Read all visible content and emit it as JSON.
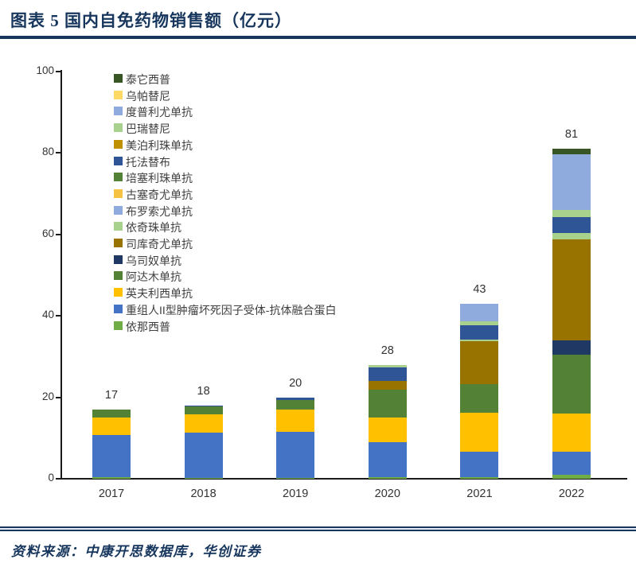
{
  "header": {
    "title": "图表 5  国内自免药物销售额（亿元）",
    "title_color": "#17365d"
  },
  "footer": {
    "source_text": "资料来源：中康开思数据库，华创证券",
    "text_color": "#17365d"
  },
  "chart_data": {
    "type": "bar",
    "stacked": true,
    "title": "国内自免药物销售额（亿元）",
    "xlabel": "",
    "ylabel": "",
    "categories": [
      "2017",
      "2018",
      "2019",
      "2020",
      "2021",
      "2022"
    ],
    "totals": [
      17,
      18,
      20,
      28,
      43,
      81
    ],
    "ylim": [
      0,
      100
    ],
    "yticks": [
      0,
      20,
      40,
      60,
      80,
      100
    ],
    "grid": false,
    "legend_position": "inside-top-left",
    "legend_note": "legend listed top-to-bottom; stacking order in bars is the reverse (last legend item at bottom of stack)",
    "series": [
      {
        "name": "泰它西普",
        "color": "#375623",
        "values": [
          0,
          0,
          0,
          0,
          0,
          1.4
        ]
      },
      {
        "name": "乌帕替尼",
        "color": "#ffd966",
        "values": [
          0,
          0,
          0,
          0,
          0,
          0
        ]
      },
      {
        "name": "度普利尤单抗",
        "color": "#8faadc",
        "values": [
          0,
          0,
          0,
          0,
          4.3,
          13.5
        ]
      },
      {
        "name": "巴瑞替尼",
        "color": "#a9d18e",
        "values": [
          0,
          0,
          0,
          0.7,
          1.0,
          1.8
        ]
      },
      {
        "name": "美泊利珠单抗",
        "color": "#bf9000",
        "values": [
          0,
          0,
          0,
          0,
          0,
          0
        ]
      },
      {
        "name": "托法替布",
        "color": "#2f5597",
        "values": [
          0,
          0.3,
          0.6,
          3.3,
          3.6,
          3.9
        ]
      },
      {
        "name": "培塞利珠单抗",
        "color": "#538135",
        "values": [
          0,
          0,
          0,
          0,
          0,
          0
        ]
      },
      {
        "name": "古塞奇尤单抗",
        "color": "#f6c242",
        "values": [
          0,
          0,
          0,
          0,
          0,
          0
        ]
      },
      {
        "name": "布罗索尤单抗",
        "color": "#8faadc",
        "values": [
          0,
          0,
          0,
          0,
          0,
          0
        ]
      },
      {
        "name": "依奇珠单抗",
        "color": "#a9d18e",
        "values": [
          0,
          0,
          0,
          0,
          0.3,
          1.6
        ]
      },
      {
        "name": "司库奇尤单抗",
        "color": "#997300",
        "values": [
          0,
          0,
          0,
          2.2,
          10.6,
          24.9
        ]
      },
      {
        "name": "乌司奴单抗",
        "color": "#1f3864",
        "values": [
          0,
          0,
          0,
          0,
          0,
          3.5
        ]
      },
      {
        "name": "阿达木单抗",
        "color": "#538135",
        "values": [
          2.0,
          1.8,
          2.4,
          6.7,
          6.9,
          14.3
        ]
      },
      {
        "name": "英夫利西单抗",
        "color": "#ffc000",
        "values": [
          4.2,
          4.5,
          5.4,
          6.1,
          9.6,
          9.4
        ]
      },
      {
        "name": "重组人II型肿瘤坏死因子受体-抗体融合蛋白",
        "color": "#4472c4",
        "values": [
          10.4,
          11.2,
          11.4,
          8.6,
          6.3,
          5.7
        ]
      },
      {
        "name": "依那西普",
        "color": "#70ad47",
        "values": [
          0.4,
          0.2,
          0.2,
          0.4,
          0.4,
          1.0
        ]
      }
    ]
  }
}
